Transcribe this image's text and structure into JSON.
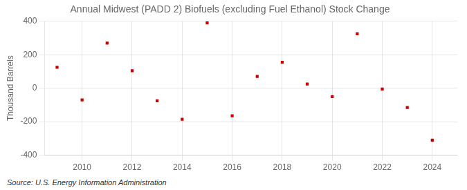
{
  "chart_data": {
    "type": "scatter",
    "title": "Annual Midwest (PADD 2) Biofuels (excluding Fuel Ethanol) Stock Change",
    "ylabel": "Thousand Barrels",
    "annotation": "Source: U.S. Energy Information Administration",
    "x": [
      2009,
      2010,
      2011,
      2012,
      2013,
      2014,
      2015,
      2016,
      2017,
      2018,
      2019,
      2020,
      2021,
      2022,
      2023,
      2024
    ],
    "values": [
      125,
      -70,
      270,
      105,
      -75,
      -185,
      390,
      -165,
      70,
      155,
      25,
      -50,
      325,
      -5,
      -115,
      -310
    ],
    "color": "#cc0000",
    "marker": "square",
    "xlim": [
      2008.5,
      2025
    ],
    "xticks": [
      2010,
      2012,
      2014,
      2016,
      2018,
      2020,
      2022,
      2024
    ],
    "ylim": [
      -400,
      400
    ],
    "yticks": [
      -400,
      -200,
      0,
      200,
      400
    ],
    "grid": true
  }
}
